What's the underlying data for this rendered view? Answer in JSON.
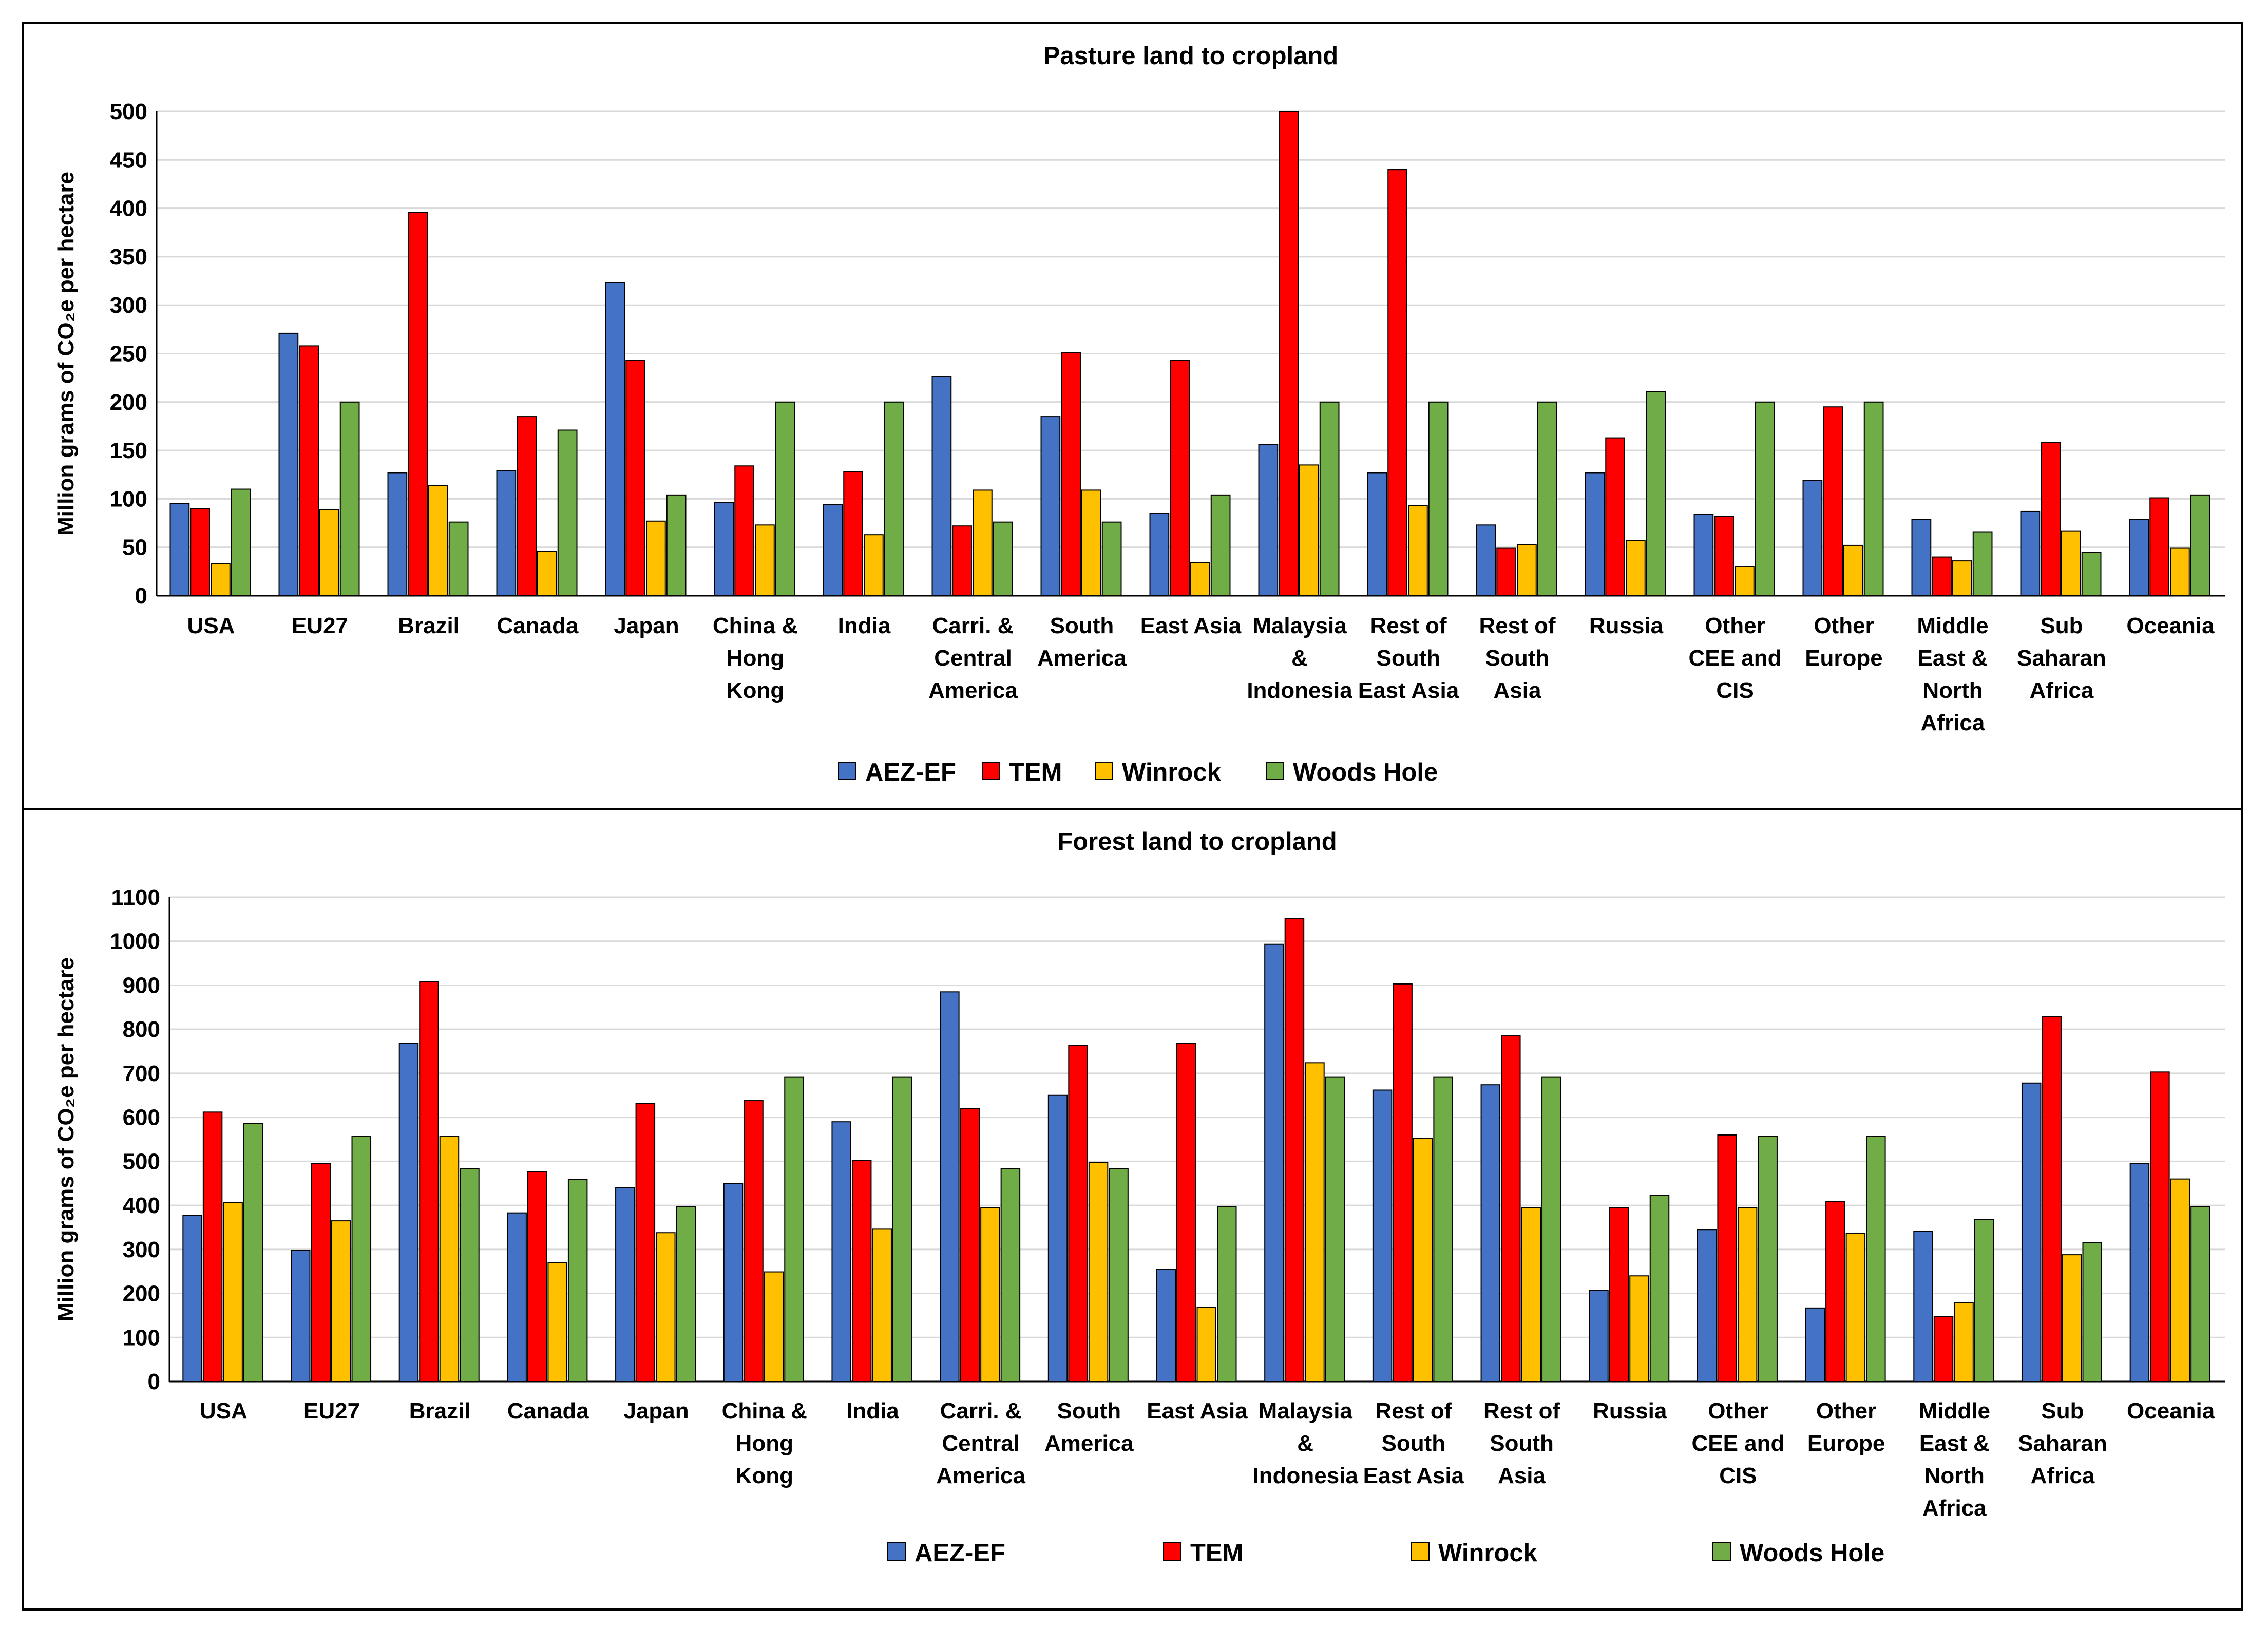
{
  "chart_data": [
    {
      "type": "bar",
      "title": "Pasture land to cropland",
      "ylabel": "Million grams of CO₂e per hectare",
      "ylim": [
        0,
        500
      ],
      "yticks": [
        0,
        50,
        100,
        150,
        200,
        250,
        300,
        350,
        400,
        450,
        500
      ],
      "grid": true,
      "legend_position": "bottom",
      "categories": [
        [
          "USA"
        ],
        [
          "EU27"
        ],
        [
          "Brazil"
        ],
        [
          "Canada"
        ],
        [
          "Japan"
        ],
        [
          "China &",
          "Hong",
          "Kong"
        ],
        [
          "India"
        ],
        [
          "Carri. &",
          "Central",
          "America"
        ],
        [
          "South",
          "America"
        ],
        [
          "East Asia"
        ],
        [
          "Malaysia",
          "&",
          "Indonesia"
        ],
        [
          "Rest of",
          "South",
          "East Asia"
        ],
        [
          "Rest of",
          "South",
          "Asia"
        ],
        [
          "Russia"
        ],
        [
          "Other",
          "CEE and",
          "CIS"
        ],
        [
          "Other",
          "Europe"
        ],
        [
          "Middle",
          "East &",
          "North",
          "Africa"
        ],
        [
          "Sub",
          "Saharan",
          "Africa"
        ],
        [
          "Oceania"
        ]
      ],
      "series": [
        {
          "name": "AEZ-EF",
          "color": "#4472C4",
          "values": [
            95,
            271,
            127,
            129,
            323,
            96,
            94,
            226,
            185,
            85,
            156,
            127,
            73,
            127,
            84,
            119,
            79,
            87,
            79
          ]
        },
        {
          "name": "TEM",
          "color": "#FF0000",
          "values": [
            90,
            258,
            396,
            185,
            243,
            134,
            128,
            72,
            251,
            243,
            500,
            440,
            49,
            163,
            82,
            195,
            40,
            158,
            101
          ]
        },
        {
          "name": "Winrock",
          "color": "#FFC000",
          "values": [
            33,
            89,
            114,
            46,
            77,
            73,
            63,
            109,
            109,
            34,
            135,
            93,
            53,
            57,
            30,
            52,
            36,
            67,
            49
          ]
        },
        {
          "name": "Woods Hole",
          "color": "#70AD47",
          "values": [
            110,
            200,
            76,
            171,
            104,
            200,
            200,
            76,
            76,
            104,
            200,
            200,
            200,
            211,
            200,
            200,
            66,
            45,
            104
          ]
        }
      ]
    },
    {
      "type": "bar",
      "title": "Forest land to cropland",
      "ylabel": "Million grams of CO₂e per hectare",
      "ylim": [
        0,
        1100
      ],
      "yticks": [
        0,
        100,
        200,
        300,
        400,
        500,
        600,
        700,
        800,
        900,
        1000,
        1100
      ],
      "grid": true,
      "legend_position": "bottom",
      "categories": [
        [
          "USA"
        ],
        [
          "EU27"
        ],
        [
          "Brazil"
        ],
        [
          "Canada"
        ],
        [
          "Japan"
        ],
        [
          "China &",
          "Hong",
          "Kong"
        ],
        [
          "India"
        ],
        [
          "Carri. &",
          "Central",
          "America"
        ],
        [
          "South",
          "America"
        ],
        [
          "East Asia"
        ],
        [
          "Malaysia",
          "&",
          "Indonesia"
        ],
        [
          "Rest of",
          "South",
          "East Asia"
        ],
        [
          "Rest of",
          "South",
          "Asia"
        ],
        [
          "Russia"
        ],
        [
          "Other",
          "CEE and",
          "CIS"
        ],
        [
          "Other",
          "Europe"
        ],
        [
          "Middle",
          "East &",
          "North",
          "Africa"
        ],
        [
          "Sub",
          "Saharan",
          "Africa"
        ],
        [
          "Oceania"
        ]
      ],
      "series": [
        {
          "name": "AEZ-EF",
          "color": "#4472C4",
          "values": [
            377,
            298,
            768,
            383,
            440,
            450,
            590,
            885,
            650,
            255,
            993,
            662,
            674,
            207,
            345,
            167,
            341,
            678,
            495
          ]
        },
        {
          "name": "TEM",
          "color": "#FF0000",
          "values": [
            612,
            495,
            908,
            476,
            632,
            638,
            502,
            620,
            763,
            768,
            1052,
            903,
            785,
            395,
            560,
            409,
            148,
            829,
            703
          ]
        },
        {
          "name": "Winrock",
          "color": "#FFC000",
          "values": [
            407,
            365,
            557,
            270,
            338,
            249,
            346,
            395,
            497,
            168,
            724,
            552,
            395,
            240,
            395,
            337,
            179,
            288,
            460
          ]
        },
        {
          "name": "Woods Hole",
          "color": "#70AD47",
          "values": [
            586,
            557,
            483,
            459,
            397,
            691,
            691,
            483,
            483,
            397,
            691,
            691,
            691,
            423,
            557,
            557,
            368,
            315,
            397
          ]
        }
      ]
    }
  ]
}
